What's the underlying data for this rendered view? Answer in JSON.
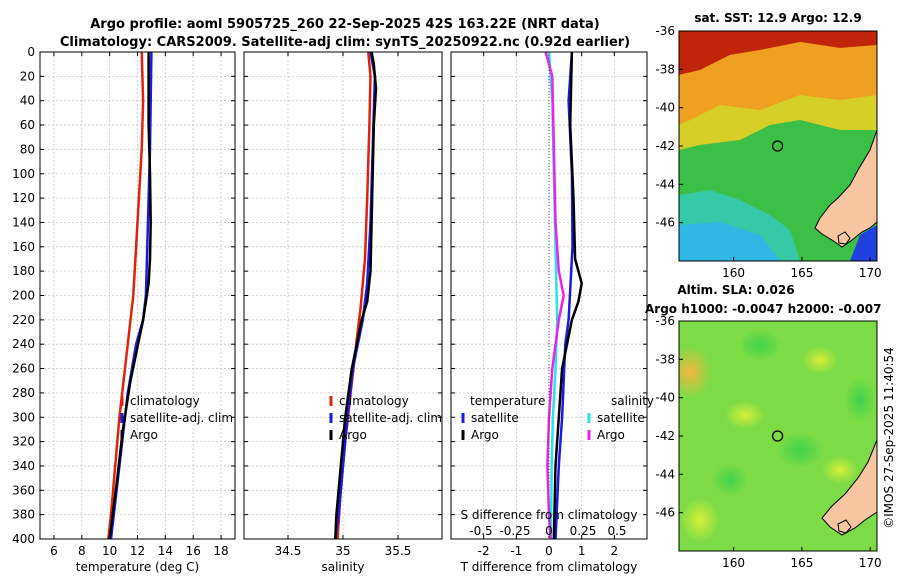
{
  "titles": {
    "line1": "Argo profile: aoml 5905725_260 22-Sep-2025 42S 163.22E (NRT data)",
    "line2": "Climatology: CARS2009. Satellite-adj clim: synTS_20250922.nc (0.92d earlier)"
  },
  "depth_ticks": [
    "0",
    "20",
    "40",
    "60",
    "80",
    "100",
    "120",
    "140",
    "160",
    "180",
    "200",
    "220",
    "240",
    "260",
    "280",
    "300",
    "320",
    "340",
    "360",
    "380",
    "400"
  ],
  "colors": {
    "climatology": "#e0220b",
    "satellite": "#1a1ae6",
    "argo": "#000000",
    "sal_satellite": "#22e5ee",
    "sal_argo": "#ee22ee"
  },
  "chart_data": [
    {
      "type": "line",
      "panel": "temperature",
      "xlabel": "temperature (deg C)",
      "xlim": [
        5,
        19
      ],
      "ylim": [
        0,
        400
      ],
      "y_reversed": true,
      "xticks": [
        6,
        8,
        10,
        12,
        14,
        16,
        18
      ],
      "legend": [
        "climatology",
        "satellite-adj. clim",
        "Argo"
      ],
      "series": [
        {
          "name": "climatology",
          "color": "climatology",
          "points": [
            [
              12.3,
              0
            ],
            [
              12.4,
              40
            ],
            [
              12.3,
              80
            ],
            [
              12.1,
              120
            ],
            [
              11.9,
              160
            ],
            [
              11.7,
              200
            ],
            [
              11.5,
              220
            ],
            [
              11.1,
              260
            ],
            [
              10.7,
              300
            ],
            [
              10.4,
              340
            ],
            [
              10.1,
              380
            ],
            [
              9.9,
              400
            ]
          ]
        },
        {
          "name": "satellite-adj. clim",
          "color": "satellite",
          "points": [
            [
              13.0,
              0
            ],
            [
              12.95,
              40
            ],
            [
              12.9,
              80
            ],
            [
              12.8,
              120
            ],
            [
              12.7,
              160
            ],
            [
              12.6,
              200
            ],
            [
              12.4,
              220
            ],
            [
              11.9,
              240
            ],
            [
              11.3,
              280
            ],
            [
              10.9,
              320
            ],
            [
              10.5,
              360
            ],
            [
              10.1,
              400
            ]
          ]
        },
        {
          "name": "Argo",
          "color": "argo",
          "points": [
            [
              12.8,
              0
            ],
            [
              12.8,
              60
            ],
            [
              12.9,
              100
            ],
            [
              12.95,
              140
            ],
            [
              12.9,
              170
            ],
            [
              12.8,
              190
            ],
            [
              12.6,
              205
            ],
            [
              12.4,
              220
            ],
            [
              11.5,
              270
            ],
            [
              10.95,
              310
            ],
            [
              10.55,
              350
            ],
            [
              10.0,
              400
            ]
          ]
        }
      ]
    },
    {
      "type": "line",
      "panel": "salinity",
      "xlabel": "salinity",
      "xlim": [
        34.1,
        35.9
      ],
      "ylim": [
        0,
        400
      ],
      "y_reversed": true,
      "xticks": [
        34.5,
        35,
        35.5
      ],
      "xticklabels": [
        "34.5",
        "35",
        "35.5"
      ],
      "legend": [
        "climatology",
        "satellite-adj. clim",
        "Argo"
      ],
      "series": [
        {
          "name": "climatology",
          "color": "climatology",
          "points": [
            [
              35.23,
              0
            ],
            [
              35.25,
              20
            ],
            [
              35.24,
              60
            ],
            [
              35.22,
              120
            ],
            [
              35.2,
              170
            ],
            [
              35.16,
              210
            ],
            [
              35.12,
              240
            ],
            [
              35.07,
              280
            ],
            [
              35.02,
              320
            ],
            [
              34.98,
              360
            ],
            [
              34.95,
              400
            ]
          ]
        },
        {
          "name": "satellite-adj. clim",
          "color": "satellite",
          "points": [
            [
              35.25,
              0
            ],
            [
              35.29,
              20
            ],
            [
              35.27,
              80
            ],
            [
              35.25,
              140
            ],
            [
              35.22,
              190
            ],
            [
              35.18,
              220
            ],
            [
              35.09,
              260
            ],
            [
              35.04,
              300
            ],
            [
              35.0,
              340
            ],
            [
              34.96,
              380
            ],
            [
              34.93,
              400
            ]
          ]
        },
        {
          "name": "Argo",
          "color": "argo",
          "points": [
            [
              35.26,
              0
            ],
            [
              35.28,
              10
            ],
            [
              35.3,
              30
            ],
            [
              35.28,
              60
            ],
            [
              35.27,
              100
            ],
            [
              35.26,
              140
            ],
            [
              35.25,
              180
            ],
            [
              35.22,
              205
            ],
            [
              35.17,
              220
            ],
            [
              35.08,
              260
            ],
            [
              35.02,
              300
            ],
            [
              34.98,
              340
            ],
            [
              34.94,
              380
            ],
            [
              34.93,
              400
            ]
          ]
        }
      ]
    },
    {
      "type": "line",
      "panel": "difference",
      "xlabel": "T difference from climatology",
      "top_label": "S difference from climatology",
      "xlim": [
        -3.0,
        3.0
      ],
      "ylim": [
        0,
        400
      ],
      "y_reversed": true,
      "xticks": [
        -2,
        -1,
        0,
        1,
        2
      ],
      "sticks": [
        -0.5,
        -0.25,
        0,
        0.25,
        0.5
      ],
      "sticklabels": [
        "-0.5",
        "-0.25",
        "0",
        "0.25",
        "0.5"
      ],
      "legend_temperature_title": "temperature",
      "legend_salinity_title": "salinity",
      "legend_temperature": [
        "satellite",
        "Argo"
      ],
      "legend_salinity": [
        "satellite",
        "Argo"
      ],
      "series": [
        {
          "name": "temperature satellite",
          "color": "satellite",
          "points": [
            [
              0.7,
              0
            ],
            [
              0.6,
              40
            ],
            [
              0.7,
              100
            ],
            [
              0.72,
              160
            ],
            [
              0.6,
              220
            ],
            [
              0.5,
              240
            ],
            [
              0.4,
              300
            ],
            [
              0.3,
              340
            ],
            [
              0.2,
              400
            ]
          ]
        },
        {
          "name": "temperature Argo",
          "color": "argo",
          "points": [
            [
              0.7,
              0
            ],
            [
              0.65,
              60
            ],
            [
              0.75,
              120
            ],
            [
              0.8,
              170
            ],
            [
              1.0,
              190
            ],
            [
              0.9,
              205
            ],
            [
              0.7,
              220
            ],
            [
              0.4,
              260
            ],
            [
              0.3,
              300
            ],
            [
              0.2,
              340
            ],
            [
              0.15,
              400
            ]
          ]
        },
        {
          "name": "salinity satellite",
          "color": "sal_satellite",
          "points": [
            [
              0.0,
              0
            ],
            [
              0.1,
              40
            ],
            [
              0.15,
              100
            ],
            [
              0.2,
              160
            ],
            [
              0.25,
              220
            ],
            [
              0.2,
              260
            ],
            [
              0.12,
              300
            ],
            [
              0.08,
              340
            ],
            [
              0.06,
              400
            ]
          ]
        },
        {
          "name": "salinity Argo",
          "color": "sal_argo",
          "points": [
            [
              -0.1,
              0
            ],
            [
              0.1,
              20
            ],
            [
              0.15,
              80
            ],
            [
              0.2,
              140
            ],
            [
              0.3,
              180
            ],
            [
              0.45,
              200
            ],
            [
              0.3,
              220
            ],
            [
              0.1,
              260
            ],
            [
              0.0,
              300
            ],
            [
              -0.05,
              340
            ],
            [
              0.0,
              380
            ],
            [
              0.05,
              400
            ]
          ]
        }
      ]
    },
    {
      "type": "heatmap",
      "panel": "sst_map",
      "title": "sat. SST: 12.9 Argo: 12.9",
      "xlim": [
        156,
        170.5
      ],
      "ylim": [
        -48,
        -36
      ],
      "xticks": [
        160,
        165,
        170
      ],
      "yticks": [
        -36,
        -38,
        -40,
        -42,
        -44,
        -46
      ],
      "argo_position": [
        163.22,
        -42.0
      ]
    },
    {
      "type": "heatmap",
      "panel": "sla_map",
      "title": "Altim. SLA: 0.026",
      "subtitle": "Argo h1000: -0.0047 h2000: -0.007",
      "xlim": [
        156,
        170.5
      ],
      "ylim": [
        -48,
        -36
      ],
      "xticks": [
        160,
        165,
        170
      ],
      "yticks": [
        -36,
        -38,
        -40,
        -42,
        -44,
        -46
      ],
      "argo_position": [
        163.22,
        -42.0
      ]
    }
  ],
  "side_label": "©IMOS 27-Sep-2025 11:40:54"
}
